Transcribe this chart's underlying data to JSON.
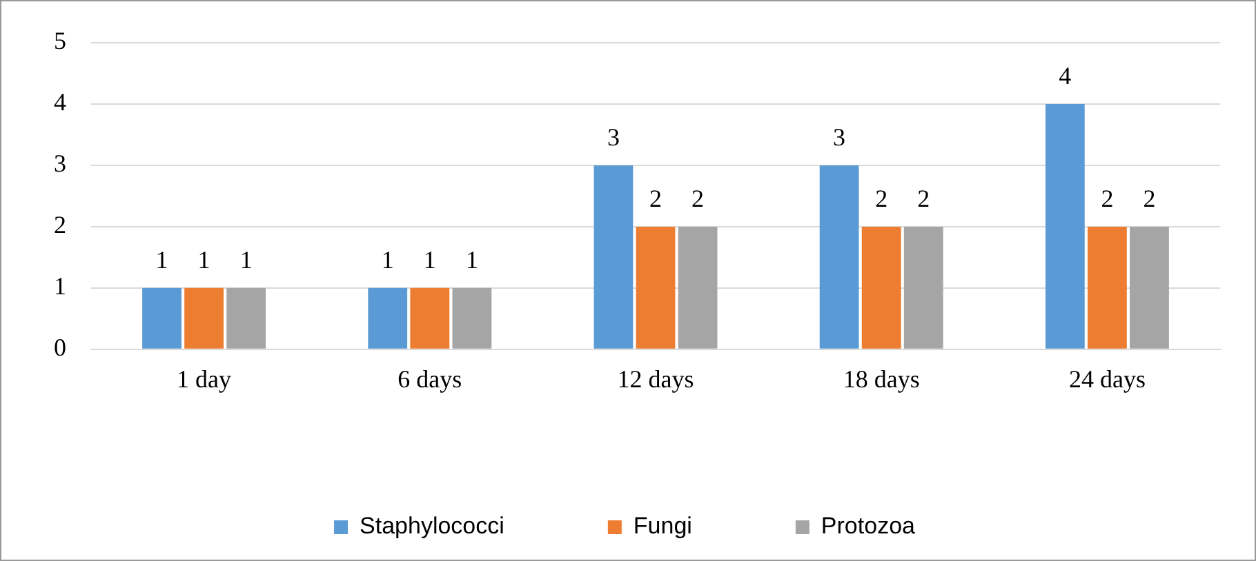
{
  "chart_data": {
    "type": "bar",
    "categories": [
      "1 day",
      "6 days",
      "12 days",
      "18 days",
      "24 days"
    ],
    "series": [
      {
        "name": "Staphylococci",
        "color": "#5b9bd5",
        "values": [
          1,
          1,
          3,
          3,
          4
        ]
      },
      {
        "name": "Fungi",
        "color": "#ed7d31",
        "values": [
          1,
          1,
          2,
          2,
          2
        ]
      },
      {
        "name": "Protozoa",
        "color": "#a5a5a5",
        "values": [
          1,
          1,
          2,
          2,
          2
        ]
      }
    ],
    "ylim": [
      0,
      5
    ],
    "yticks": [
      0,
      1,
      2,
      3,
      4,
      5
    ],
    "grid": "y",
    "legend": "bottom",
    "data_labels": true
  }
}
